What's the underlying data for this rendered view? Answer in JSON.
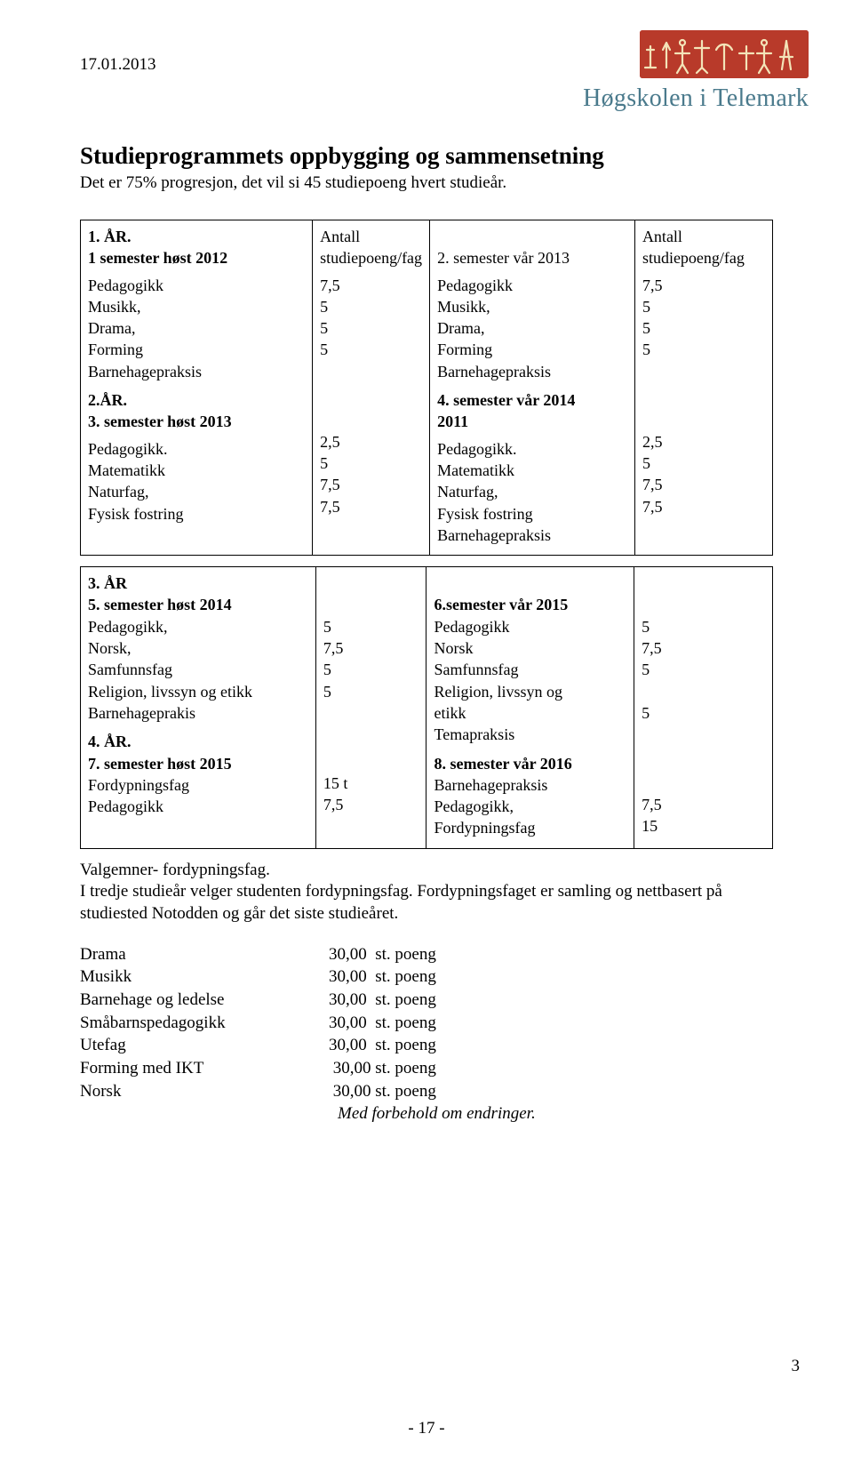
{
  "date_top": "17.01.2013",
  "logo": {
    "institution": "Høgskolen i Telemark",
    "frieze_bg": "#b83a2a",
    "text_color": "#4a7a8c"
  },
  "title": "Studieprogrammets oppbygging og sammensetning",
  "subtitle": "Det er 75% progresjon, det vil si 45 studiepoeng hvert studieår.",
  "table1": {
    "r1c1_head": "1. ÅR.\n1 semester høst 2012",
    "r1c2_head": "Antall\nstudiepoeng/fag",
    "r1c3_head": "2. semester vår 2013",
    "r1c4_head": "Antall\nstudiepoeng/fag",
    "r2c1": "Pedagogikk\nMusikk,\nDrama,\nForming\nBarnehagepraksis",
    "r2c2": "7,5\n5\n5\n5",
    "r2c3": "Pedagogikk\nMusikk,\nDrama,\nForming\nBarnehagepraksis",
    "r2c4": "7,5\n5\n5\n5",
    "r3c1_head": "2.ÅR.\n3. semester høst 2013",
    "r3c3_head": "4. semester vår 2014\n2011",
    "r4c1": "Pedagogikk.\nMatematikk\nNaturfag,\nFysisk fostring",
    "r4c2": "2,5\n5\n7,5\n7,5",
    "r4c3": "Pedagogikk.\nMatematikk\nNaturfag,\nFysisk fostring\nBarnehagepraksis",
    "r4c4": "2,5\n5\n7,5\n7,5"
  },
  "table2": {
    "r1c1_head": "3. ÅR\n5. semester høst 2014",
    "r1c1_body": "Pedagogikk,\nNorsk,\nSamfunnsfag\nReligion, livssyn og etikk\nBarnehageprakis",
    "r1c2": "5\n7,5\n5\n5",
    "r1c3_head": "6.semester vår 2015",
    "r1c3_body": "Pedagogikk\nNorsk\nSamfunnsfag\nReligion, livssyn og\netikk\nTemapraksis",
    "r1c4": "5\n7,5\n5\n\n5",
    "r2c1_head": "4. ÅR.\n7. semester høst 2015",
    "r2c1_body": "Fordypningsfag\nPedagogikk",
    "r2c2": "15 t\n7,5",
    "r2c3_head": "8. semester vår 2016",
    "r2c3_body": "Barnehagepraksis\nPedagogikk,\nFordypningsfag",
    "r2c4": "\n7,5\n15"
  },
  "valgemner": "Valgemner- fordypningsfag.\nI tredje studieår velger studenten fordypningsfag. Fordypningsfaget er samling og nettbasert på studiested Notodden og går det siste studieåret.",
  "credits": [
    {
      "name": "Drama",
      "pts": "30,00  st. poeng"
    },
    {
      "name": "Musikk",
      "pts": "30,00  st. poeng"
    },
    {
      "name": "Barnehage og ledelse",
      "pts": "30,00  st. poeng"
    },
    {
      "name": "Småbarnspedagogikk",
      "pts": "30,00  st. poeng"
    },
    {
      "name": "Utefag",
      "pts": "30,00  st. poeng"
    },
    {
      "name": "Forming med IKT",
      "pts": " 30,00 st. poeng"
    },
    {
      "name": "Norsk",
      "pts": " 30,00 st. poeng"
    }
  ],
  "disclaimer": "Med forbehold om endringer.",
  "page_number_right": "3",
  "page_number_bottom": "- 17 -"
}
